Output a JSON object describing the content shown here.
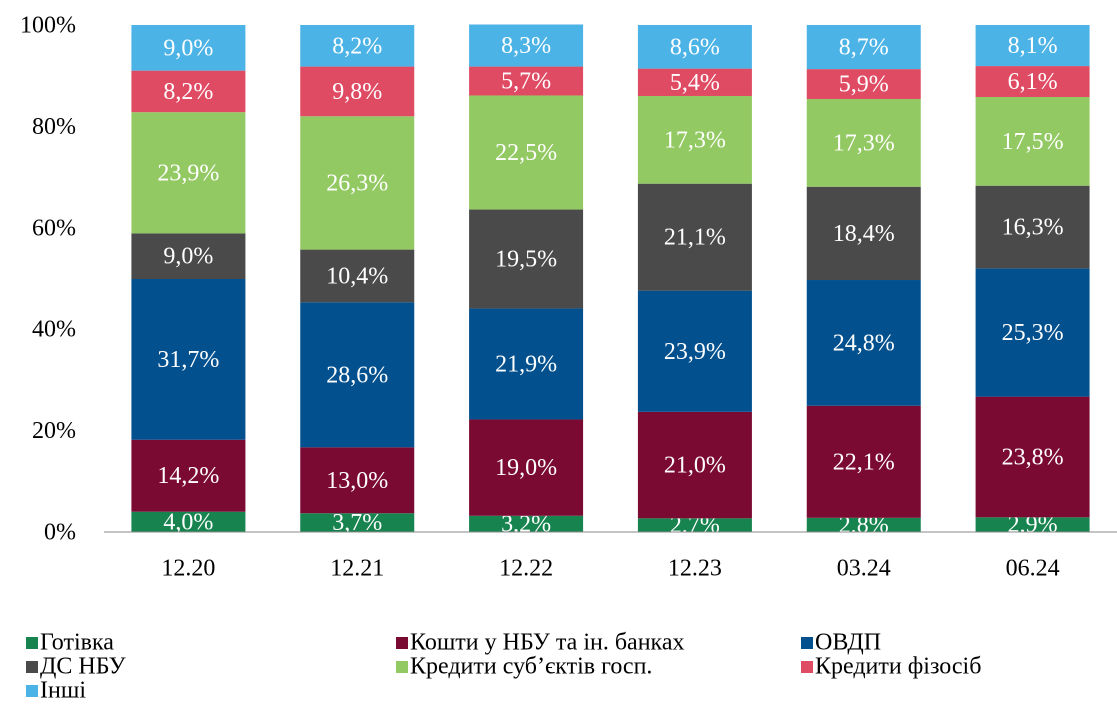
{
  "chart_data": {
    "type": "stacked_bar",
    "categories": [
      "12.20",
      "12.21",
      "12.22",
      "12.23",
      "03.24",
      "06.24"
    ],
    "series": [
      {
        "name": "Готівка",
        "color": "#17834f",
        "values": [
          4.0,
          3.7,
          3.2,
          2.7,
          2.8,
          2.9
        ],
        "value_labels": [
          "4,0%",
          "3,7%",
          "3,2%",
          "2,7%",
          "2,8%",
          "2,9%"
        ]
      },
      {
        "name": "Кошти у НБУ та ін. банках",
        "color": "#7b0a33",
        "values": [
          14.2,
          13.0,
          19.0,
          21.0,
          22.1,
          23.8
        ],
        "value_labels": [
          "14,2%",
          "13,0%",
          "19,0%",
          "21,0%",
          "22,1%",
          "23,8%"
        ]
      },
      {
        "name": "ОВДП",
        "color": "#02508e",
        "values": [
          31.7,
          28.6,
          21.9,
          23.9,
          24.8,
          25.3
        ],
        "value_labels": [
          "31,7%",
          "28,6%",
          "21,9%",
          "23,9%",
          "24,8%",
          "25,3%"
        ]
      },
      {
        "name": "ДС НБУ",
        "color": "#4a4a4a",
        "values": [
          9.0,
          10.4,
          19.5,
          21.1,
          18.4,
          16.3
        ],
        "value_labels": [
          "9,0%",
          "10,4%",
          "19,5%",
          "21,1%",
          "18,4%",
          "16,3%"
        ]
      },
      {
        "name": "Кредити суб’єктів госп.",
        "color": "#93c963",
        "values": [
          23.9,
          26.3,
          22.5,
          17.3,
          17.3,
          17.5
        ],
        "value_labels": [
          "23,9%",
          "26,3%",
          "22,5%",
          "17,3%",
          "17,3%",
          "17,5%"
        ]
      },
      {
        "name": "Кредити фізосіб",
        "color": "#e04b64",
        "values": [
          8.2,
          9.8,
          5.7,
          5.4,
          5.9,
          6.1
        ],
        "value_labels": [
          "8,2%",
          "9,8%",
          "5,7%",
          "5,4%",
          "5,9%",
          "6,1%"
        ]
      },
      {
        "name": "Інші",
        "color": "#4cb3e6",
        "values": [
          9.0,
          8.2,
          8.3,
          8.6,
          8.7,
          8.1
        ],
        "value_labels": [
          "9,0%",
          "8,2%",
          "8,3%",
          "8,6%",
          "8,7%",
          "8,1%"
        ]
      }
    ],
    "ylim": [
      0,
      100
    ],
    "yticks": [
      {
        "value": 0,
        "label": "0%"
      },
      {
        "value": 20,
        "label": "20%"
      },
      {
        "value": 40,
        "label": "40%"
      },
      {
        "value": 60,
        "label": "60%"
      },
      {
        "value": 80,
        "label": "80%"
      },
      {
        "value": 100,
        "label": "100%"
      }
    ],
    "grid": false,
    "legend": "bottom"
  }
}
